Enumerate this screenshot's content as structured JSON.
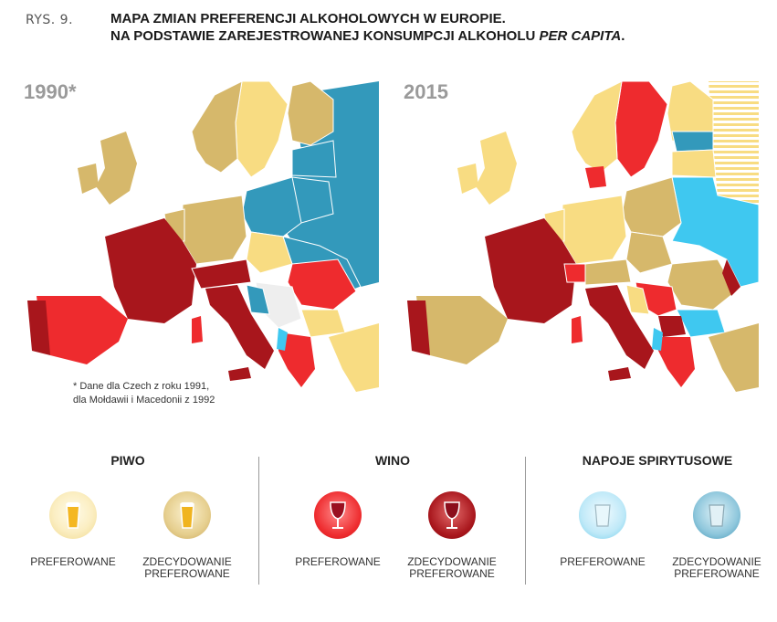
{
  "figure_label": "RYS. 9.",
  "title_line1": "MAPA ZMIAN PREFERENCJI ALKOHOLOWYCH W EUROPIE.",
  "title_line2_main": "NA PODSTAWIE ZAREJESTROWANEJ KONSUMPCJI ALKOHOLU ",
  "title_line2_italic": "PER CAPITA",
  "title_line2_end": ".",
  "maps": [
    {
      "year": "1990*"
    },
    {
      "year": "2015"
    }
  ],
  "footnote_line1": "* Dane dla Czech z roku 1991,",
  "footnote_line2": "dla Mołdawii i Macedonii z 1992",
  "legend": {
    "beer": {
      "title": "PIWO",
      "preferred": "PREFEROWANE",
      "strongly_line1": "ZDECYDOWANIE",
      "strongly_line2": "PREFEROWANE"
    },
    "wine": {
      "title": "WINO",
      "preferred": "PREFEROWANE",
      "strongly_line1": "ZDECYDOWANIE",
      "strongly_line2": "PREFEROWANE"
    },
    "spirits": {
      "title": "NAPOJE SPIRYTUSOWE",
      "preferred": "PREFEROWANE",
      "strongly_line1": "ZDECYDOWANIE",
      "strongly_line2": "PREFEROWANE"
    }
  },
  "colors": {
    "beer_preferred": "#f8dc82",
    "beer_strong": "#d6b86b",
    "wine_preferred": "#ee2b2e",
    "wine_strong": "#a8161c",
    "spirits_preferred": "#3fc8f0",
    "spirits_strong": "#3399bb",
    "no_data": "#eeeeee"
  }
}
